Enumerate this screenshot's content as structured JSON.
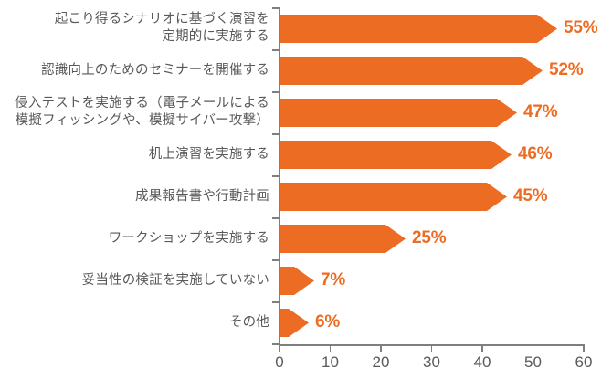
{
  "chart_data": {
    "type": "bar",
    "orientation": "horizontal",
    "title": "",
    "xlabel": "",
    "ylabel": "",
    "categories": [
      "起こり得るシナリオに基づく演習を\n定期的に実施する",
      "認識向上のためのセミナーを開催する",
      "侵入テストを実施する（電子メールによる\n模擬フィッシングや、模擬サイバー攻撃）",
      "机上演習を実施する",
      "成果報告書や行動計画",
      "ワークショップを実施する",
      "妥当性の検証を実施していない",
      "その他"
    ],
    "values": [
      55,
      52,
      47,
      46,
      45,
      25,
      7,
      6
    ],
    "value_labels": [
      "55%",
      "52%",
      "47%",
      "46%",
      "45%",
      "25%",
      "7%",
      "6%"
    ],
    "xlim": [
      0,
      60
    ],
    "x_ticks": [
      "0",
      "10",
      "20",
      "30",
      "40",
      "50",
      "60"
    ],
    "grid": false,
    "legend": "none",
    "bar_shape": "arrow",
    "colors": {
      "bar": "#ED6C23",
      "value_label": "#ED6C23",
      "axis_line": "#7F7F7F",
      "tick_label": "#595959",
      "category_label": "#595959"
    }
  }
}
